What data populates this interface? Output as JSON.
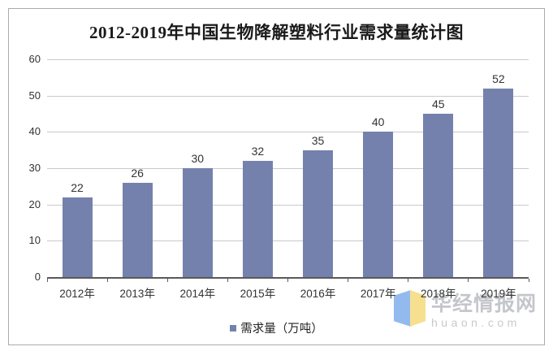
{
  "chart_data": {
    "type": "bar",
    "title": "2012-2019年中国生物降解塑料行业需求量统计图",
    "categories": [
      "2012年",
      "2013年",
      "2014年",
      "2015年",
      "2016年",
      "2017年",
      "2018年",
      "2019年"
    ],
    "values": [
      22,
      26,
      30,
      32,
      35,
      40,
      45,
      52
    ],
    "series_name": "需求量（万吨）",
    "ylim": [
      0,
      60
    ],
    "yticks": [
      0,
      10,
      20,
      30,
      40,
      50,
      60
    ],
    "grid": true,
    "data_labels": true,
    "legend_position": "bottom",
    "bar_color": "#7581ad",
    "gridline_color": "#c9c9c9",
    "axis_color": "#595959"
  },
  "watermark": {
    "site_name": "华经情报网",
    "site_url": "huaon.com",
    "logo_blue": "#93baee",
    "logo_yellow": "#f7df90"
  }
}
